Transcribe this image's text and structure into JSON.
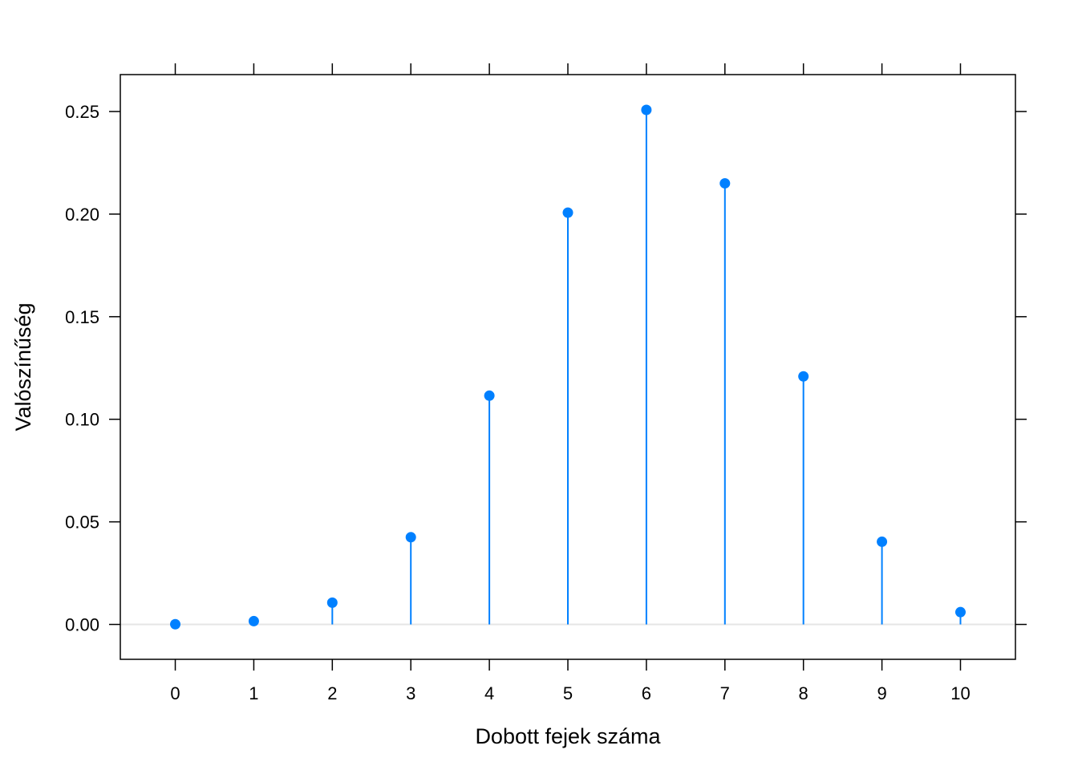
{
  "chart_data": {
    "type": "lollipop",
    "title": "",
    "xlabel": "Dobott fejek száma",
    "ylabel": "Valószínűség",
    "x": [
      0,
      1,
      2,
      3,
      4,
      5,
      6,
      7,
      8,
      9,
      10
    ],
    "x_tick_labels": [
      "0",
      "1",
      "2",
      "3",
      "4",
      "5",
      "6",
      "7",
      "8",
      "9",
      "10"
    ],
    "values": [
      0.0001,
      0.0016,
      0.0106,
      0.0425,
      0.1115,
      0.2007,
      0.2508,
      0.215,
      0.1209,
      0.0403,
      0.006
    ],
    "xlim": [
      -0.7,
      10.7
    ],
    "ylim": [
      -0.017,
      0.268
    ],
    "y_ticks": [
      0.0,
      0.05,
      0.1,
      0.15,
      0.2,
      0.25
    ],
    "y_tick_labels": [
      "0.00",
      "0.05",
      "0.10",
      "0.15",
      "0.20",
      "0.25"
    ],
    "reference_line": 0,
    "grid": false,
    "legend": "none",
    "colors": {
      "series": "#0080ff",
      "reference_line": "#e6e6e6",
      "axes": "#000000"
    }
  }
}
